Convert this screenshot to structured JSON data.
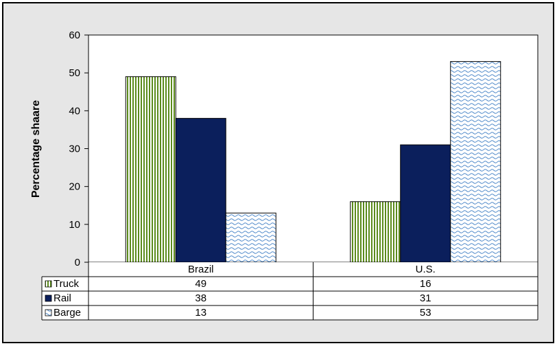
{
  "chart_data": {
    "type": "bar",
    "title": "",
    "xlabel": "",
    "ylabel": "Percentage shaare",
    "ylim": [
      0,
      60
    ],
    "yticks": [
      0,
      10,
      20,
      30,
      40,
      50,
      60
    ],
    "categories": [
      "Brazil",
      "U.S."
    ],
    "grid": false,
    "legend": "data-table",
    "series": [
      {
        "name": "Truck",
        "values": [
          49,
          16
        ],
        "color": "#5a8a1a",
        "pattern": "vertical-stripes"
      },
      {
        "name": "Rail",
        "values": [
          38,
          31
        ],
        "color": "#0b1f5c",
        "pattern": "solid"
      },
      {
        "name": "Barge",
        "values": [
          13,
          53
        ],
        "color": "#4a86c8",
        "pattern": "waves"
      }
    ]
  }
}
